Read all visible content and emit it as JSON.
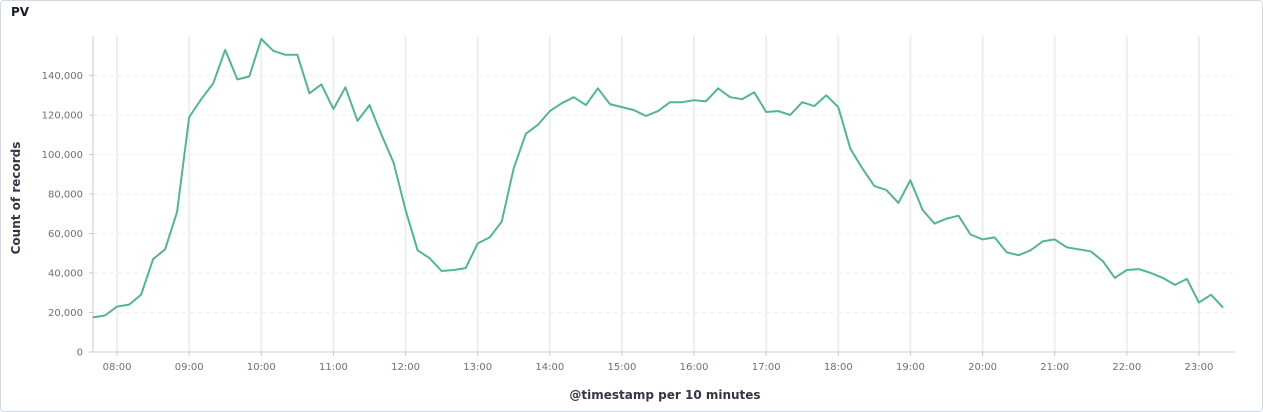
{
  "panel": {
    "title": "PV"
  },
  "colors": {
    "series": "#54b399",
    "grid": "#eeeeee",
    "axis": "#c5cbd6",
    "text": "#69707d"
  },
  "chart_data": {
    "type": "line",
    "title": "PV",
    "xlabel": "@timestamp per 10 minutes",
    "ylabel": "Count of records",
    "ylim": [
      0,
      160000
    ],
    "y_ticks": [
      0,
      20000,
      40000,
      60000,
      80000,
      100000,
      120000,
      140000
    ],
    "y_tick_labels": [
      "0",
      "20,000",
      "40,000",
      "60,000",
      "80,000",
      "100,000",
      "120,000",
      "140,000"
    ],
    "xlim": [
      "07:40",
      "23:30"
    ],
    "x_ticks": [
      "08:00",
      "09:00",
      "10:00",
      "11:00",
      "12:00",
      "13:00",
      "14:00",
      "15:00",
      "16:00",
      "17:00",
      "18:00",
      "19:00",
      "20:00",
      "21:00",
      "22:00",
      "23:00"
    ],
    "grid": true,
    "legend": "none",
    "series": [
      {
        "x": [
          "07:40",
          "07:50",
          "08:00",
          "08:10",
          "08:20",
          "08:30",
          "08:40",
          "08:50",
          "09:00",
          "09:10",
          "09:20",
          "09:30",
          "09:40",
          "09:50",
          "10:00",
          "10:10",
          "10:20",
          "10:30",
          "10:40",
          "10:50",
          "11:00",
          "11:10",
          "11:20",
          "11:30",
          "11:40",
          "11:50",
          "12:00",
          "12:10",
          "12:20",
          "12:30",
          "12:40",
          "12:50",
          "13:00",
          "13:10",
          "13:20",
          "13:30",
          "13:40",
          "13:50",
          "14:00",
          "14:10",
          "14:20",
          "14:30",
          "14:40",
          "14:50",
          "15:00",
          "15:10",
          "15:20",
          "15:30",
          "15:40",
          "15:50",
          "16:00",
          "16:10",
          "16:20",
          "16:30",
          "16:40",
          "16:50",
          "17:00",
          "17:10",
          "17:20",
          "17:30",
          "17:40",
          "17:50",
          "18:00",
          "18:10",
          "18:20",
          "18:30",
          "18:40",
          "18:50",
          "19:00",
          "19:10",
          "19:20",
          "19:30",
          "19:40",
          "19:50",
          "20:00",
          "20:10",
          "20:20",
          "20:30",
          "20:40",
          "20:50",
          "21:00",
          "21:10",
          "21:20",
          "21:30",
          "21:40",
          "21:50",
          "22:00",
          "22:10",
          "22:20",
          "22:30",
          "22:40",
          "22:50",
          "23:00",
          "23:10",
          "23:20"
        ],
        "values": [
          17500,
          18500,
          23000,
          24000,
          29000,
          47000,
          52000,
          71000,
          119000,
          128000,
          136000,
          153000,
          138000,
          139500,
          158500,
          152500,
          150500,
          150500,
          131000,
          135500,
          123000,
          134000,
          117000,
          125000,
          110000,
          96000,
          72000,
          51500,
          47500,
          41000,
          41500,
          42500,
          55000,
          58000,
          66000,
          93000,
          110500,
          115000,
          122000,
          126000,
          129000,
          125000,
          133500,
          125500,
          124000,
          122500,
          119500,
          122000,
          126500,
          126500,
          127500,
          127000,
          133500,
          129000,
          128000,
          131500,
          121500,
          122000,
          120000,
          126500,
          124500,
          130000,
          124000,
          103000,
          93000,
          84000,
          82000,
          75500,
          87000,
          72000,
          65000,
          67500,
          69000,
          59500,
          57000,
          58000,
          50500,
          49000,
          51500,
          56000,
          57000,
          53000,
          52000,
          51000,
          46000,
          37500,
          41500,
          42000,
          40000,
          37500,
          34000,
          37000,
          25000,
          29000,
          22500
        ]
      }
    ]
  }
}
